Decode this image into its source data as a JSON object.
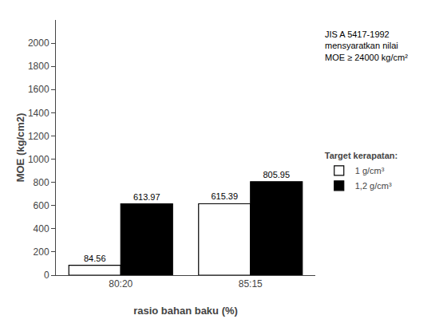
{
  "chart_data": {
    "type": "bar",
    "categories": [
      "80:20",
      "85:15"
    ],
    "series": [
      {
        "name": "1 g/cm³",
        "color": "#ffffff",
        "values": [
          84.56,
          615.39
        ]
      },
      {
        "name": "1,2 g/cm³",
        "color": "#000000",
        "values": [
          613.97,
          805.95
        ]
      }
    ],
    "xlabel": "rasio bahan baku (%)",
    "ylabel": "MOE (kg/cm2)",
    "legend_title": "Target kerapatan:",
    "annotations": [
      "JIS A 5417-1992\nmensyaratkan nilai\nMOE ≥ 24000 kg/cm²"
    ],
    "ylim": [
      0,
      2200
    ],
    "yticks": [
      0,
      200,
      400,
      600,
      800,
      1000,
      1200,
      1400,
      1600,
      1800,
      2000
    ],
    "grid": false,
    "legend": "right",
    "data_labels": true
  }
}
